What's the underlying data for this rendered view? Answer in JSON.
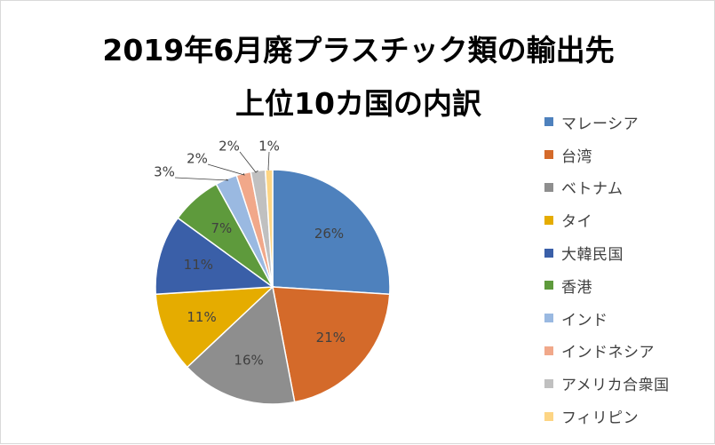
{
  "chart_data": {
    "type": "pie",
    "title_line1": "2019年6月廃プラスチック類の輸出先",
    "title_line2": "上位10カ国の内訳",
    "categories": [
      "マレーシア",
      "台湾",
      "ベトナム",
      "タイ",
      "大韓民国",
      "香港",
      "インド",
      "インドネシア",
      "アメリカ合衆国",
      "フィリピン"
    ],
    "values": [
      26,
      21,
      16,
      11,
      11,
      7,
      3,
      2,
      2,
      1
    ],
    "labels": [
      "26%",
      "21%",
      "16%",
      "11%",
      "11%",
      "7%",
      "3%",
      "2%",
      "2%",
      "1%"
    ],
    "colors": [
      "#4e81bd",
      "#d46a2a",
      "#8e8e8e",
      "#e5ac00",
      "#3a5fa8",
      "#5e9a3c",
      "#9ab9e1",
      "#f1a88a",
      "#c0c0c0",
      "#fdd584"
    ],
    "legend_position": "right"
  }
}
